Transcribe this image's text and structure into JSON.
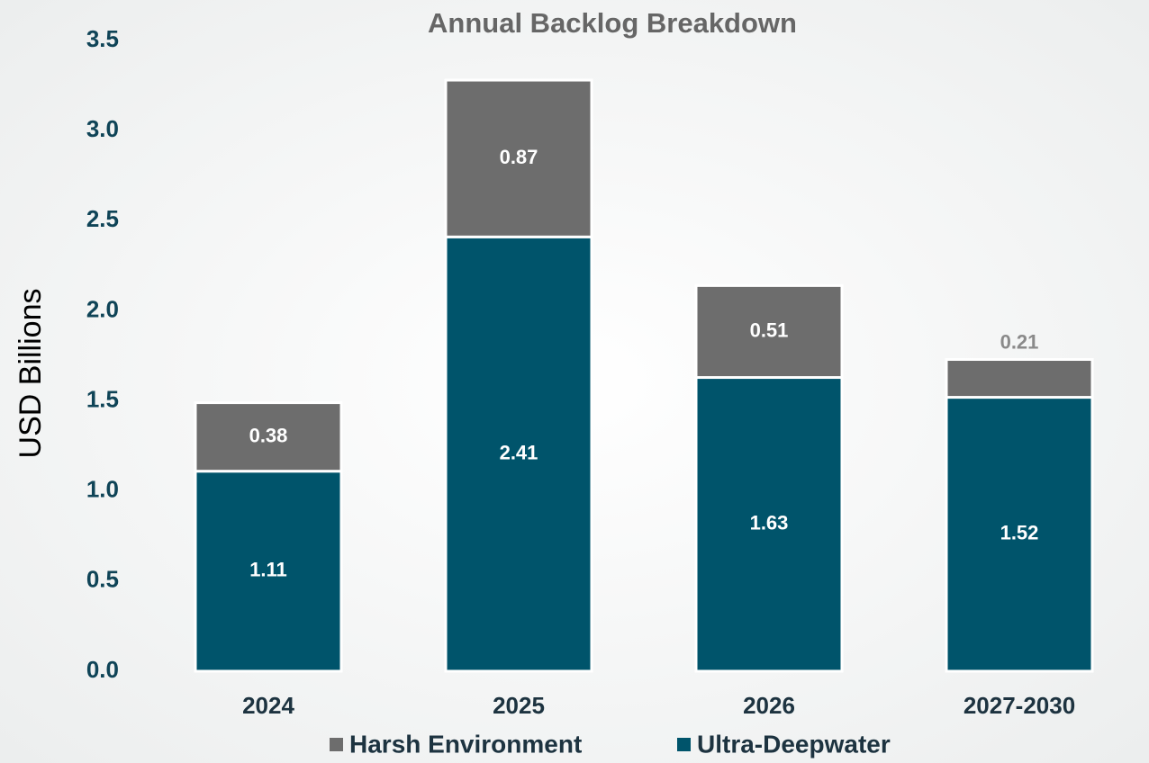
{
  "chart_data": {
    "type": "stacked_bar",
    "title": "Annual Backlog Breakdown",
    "y_label": "USD Billions",
    "categories": [
      "2024",
      "2025",
      "2026",
      "2027-2030"
    ],
    "series": [
      {
        "name": "Ultra-Deepwater",
        "color": "#00546b",
        "values": [
          1.11,
          2.41,
          1.63,
          1.52
        ]
      },
      {
        "name": "Harsh Environment",
        "color": "#6d6d6d",
        "values": [
          0.38,
          0.87,
          0.51,
          0.21
        ]
      }
    ],
    "ylim": [
      0,
      3.5
    ],
    "yticks": [
      {
        "value": 0,
        "label": "0.0"
      },
      0.5,
      {
        "value": 1,
        "label": "1.0"
      },
      1.5,
      {
        "value": 2,
        "label": "2.0"
      },
      2.5,
      {
        "value": 3,
        "label": "3.0"
      },
      3.5
    ],
    "grid": false,
    "legend": "bottom"
  }
}
